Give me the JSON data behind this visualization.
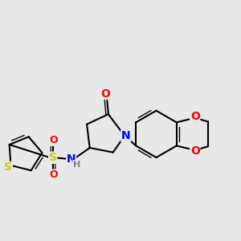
{
  "background_color": "#e8e8e8",
  "atom_colors": {
    "O": "#ff0000",
    "N": "#0000ff",
    "S": "#cccc00",
    "C": "#000000",
    "H": "#808080"
  },
  "bond_lw": 1.5,
  "font_size": 9,
  "figsize": [
    3.0,
    3.0
  ],
  "dpi": 100
}
